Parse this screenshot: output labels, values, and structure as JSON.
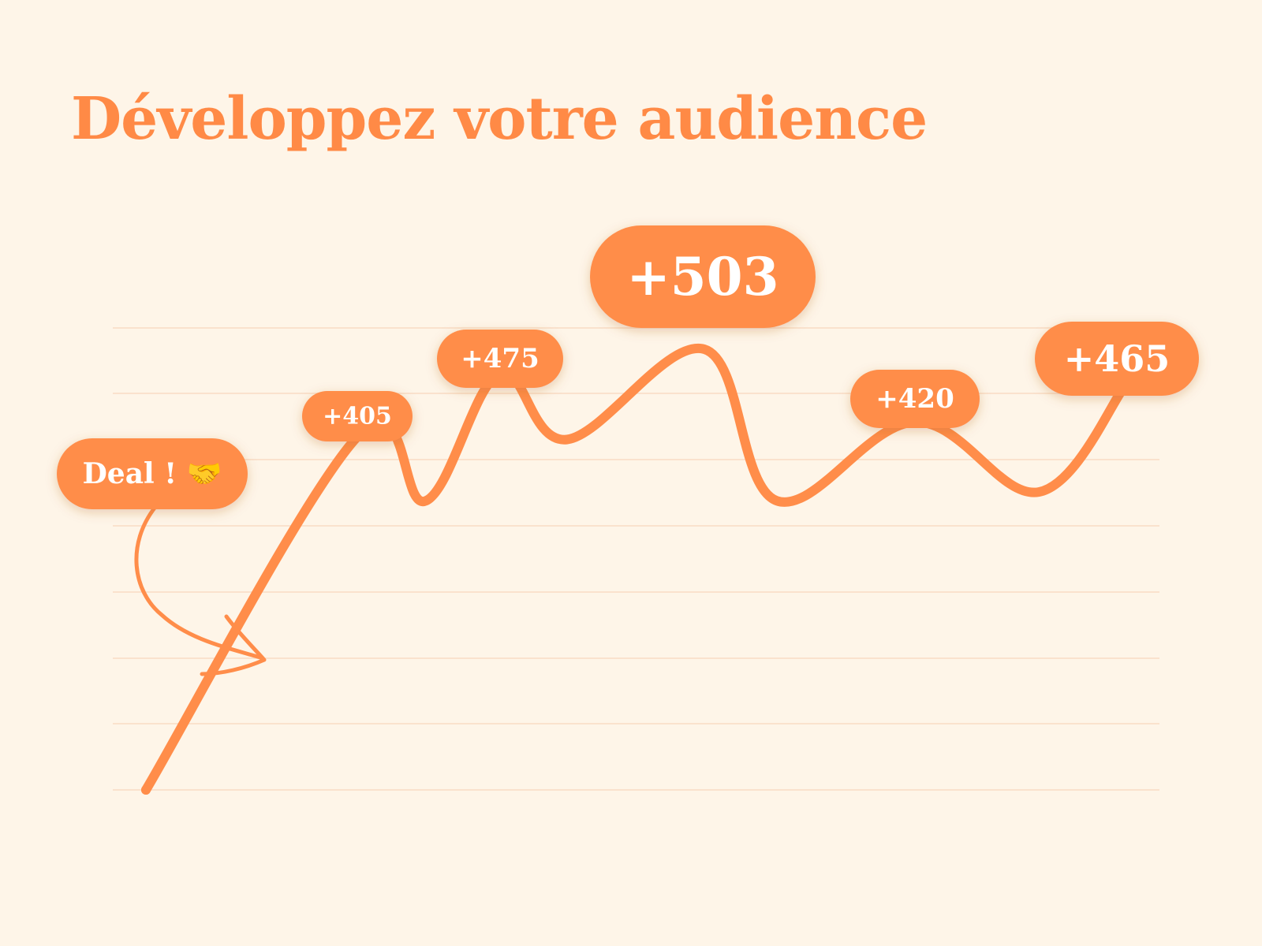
{
  "title": "Développez votre audience",
  "colors": {
    "background": "#FEF5E8",
    "accent": "#FF8D4A",
    "grid": "#F8DCC4",
    "label_text": "#FFFFFF"
  },
  "chart_data": {
    "type": "line",
    "title": "Développez votre audience",
    "xlabel": "",
    "ylabel": "",
    "grid": true,
    "tick_labels_shown": false,
    "points": [
      {
        "y": 0
      },
      {
        "y": 405,
        "label": "+405"
      },
      {
        "y": 330
      },
      {
        "y": 475,
        "label": "+475"
      },
      {
        "y": 400
      },
      {
        "y": 503,
        "label": "+503"
      },
      {
        "y": 330
      },
      {
        "y": 420,
        "label": "+420"
      },
      {
        "y": 340
      },
      {
        "y": 465,
        "label": "+465"
      }
    ],
    "annotation": {
      "text": "Deal ! 🤝",
      "target_point": 0
    }
  }
}
